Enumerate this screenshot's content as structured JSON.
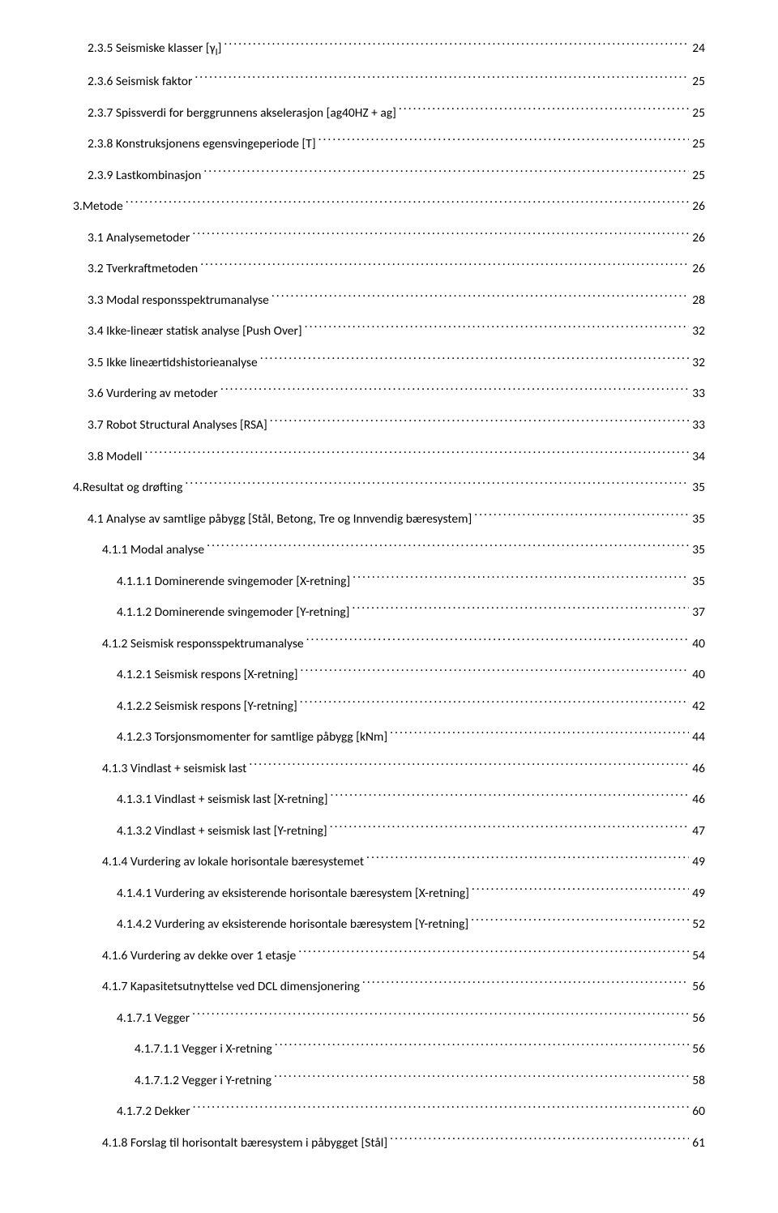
{
  "toc": [
    {
      "indent": 1,
      "title": "2.3.5 Seismiske klasser [γ|SUBI|]",
      "page": "24"
    },
    {
      "indent": 1,
      "title": "2.3.6 Seismisk faktor",
      "page": "25"
    },
    {
      "indent": 1,
      "title": "2.3.7 Spissverdi for berggrunnens akselerasjon [ag40HZ + ag]",
      "page": "25"
    },
    {
      "indent": 1,
      "title": "2.3.8 Konstruksjonens egensvingeperiode [T]",
      "page": "25"
    },
    {
      "indent": 1,
      "title": "2.3.9 Lastkombinasjon",
      "page": "25"
    },
    {
      "indent": 0,
      "title": "3.Metode",
      "page": "26"
    },
    {
      "indent": 1,
      "title": "3.1 Analysemetoder",
      "page": "26"
    },
    {
      "indent": 1,
      "title": "3.2 Tverkraftmetoden",
      "page": "26"
    },
    {
      "indent": 1,
      "title": "3.3 Modal responsspektrumanalyse",
      "page": "28"
    },
    {
      "indent": 1,
      "title": "3.4 Ikke-lineær statisk analyse [Push Over]",
      "page": "32"
    },
    {
      "indent": 1,
      "title": "3.5 Ikke lineærtidshistorieanalyse",
      "page": "32"
    },
    {
      "indent": 1,
      "title": "3.6 Vurdering av metoder",
      "page": "33"
    },
    {
      "indent": 1,
      "title": "3.7 Robot Structural Analyses [RSA]",
      "page": "33"
    },
    {
      "indent": 1,
      "title": "3.8 Modell",
      "page": "34"
    },
    {
      "indent": 0,
      "title": "4.Resultat og drøfting",
      "page": "35"
    },
    {
      "indent": 1,
      "title": "4.1 Analyse av samtlige påbygg [Stål, Betong, Tre og Innvendig bæresystem]",
      "page": "35"
    },
    {
      "indent": 2,
      "title": "4.1.1 Modal analyse",
      "page": "35"
    },
    {
      "indent": 3,
      "title": "4.1.1.1 Dominerende svingemoder [X-retning]",
      "page": "35"
    },
    {
      "indent": 3,
      "title": "4.1.1.2 Dominerende svingemoder [Y-retning]",
      "page": "37"
    },
    {
      "indent": 2,
      "title": "4.1.2 Seismisk responsspektrumanalyse",
      "page": "40"
    },
    {
      "indent": 3,
      "title": "4.1.2.1 Seismisk respons [X-retning]",
      "page": "40"
    },
    {
      "indent": 3,
      "title": "4.1.2.2 Seismisk respons [Y-retning]",
      "page": "42"
    },
    {
      "indent": 3,
      "title": "4.1.2.3 Torsjonsmomenter for samtlige påbygg [kNm]",
      "page": "44"
    },
    {
      "indent": 2,
      "title": "4.1.3 Vindlast + seismisk last",
      "page": "46"
    },
    {
      "indent": 3,
      "title": "4.1.3.1 Vindlast + seismisk last [X-retning]",
      "page": "46"
    },
    {
      "indent": 3,
      "title": "4.1.3.2 Vindlast + seismisk last [Y-retning]",
      "page": "47"
    },
    {
      "indent": 2,
      "title": "4.1.4 Vurdering av lokale horisontale bæresystemet",
      "page": "49"
    },
    {
      "indent": 3,
      "title": "4.1.4.1 Vurdering av eksisterende horisontale bæresystem [X-retning]",
      "page": "49"
    },
    {
      "indent": 3,
      "title": "4.1.4.2 Vurdering av eksisterende horisontale bæresystem [Y-retning]",
      "page": "52"
    },
    {
      "indent": 2,
      "title": "4.1.6 Vurdering av dekke over 1 etasje",
      "page": "54"
    },
    {
      "indent": 2,
      "title": "4.1.7 Kapasitetsutnyttelse ved DCL dimensjonering",
      "page": "56"
    },
    {
      "indent": 3,
      "title": "4.1.7.1 Vegger",
      "page": "56"
    },
    {
      "indent": 4,
      "title": "4.1.7.1.1 Vegger i X-retning",
      "page": "56"
    },
    {
      "indent": 4,
      "title": "4.1.7.1.2 Vegger i Y-retning",
      "page": "58"
    },
    {
      "indent": 3,
      "title": "4.1.7.2 Dekker",
      "page": "60"
    },
    {
      "indent": 2,
      "title": "4.1.8 Forslag til horisontalt bæresystem i påbygget [Stål]",
      "page": "61"
    }
  ]
}
